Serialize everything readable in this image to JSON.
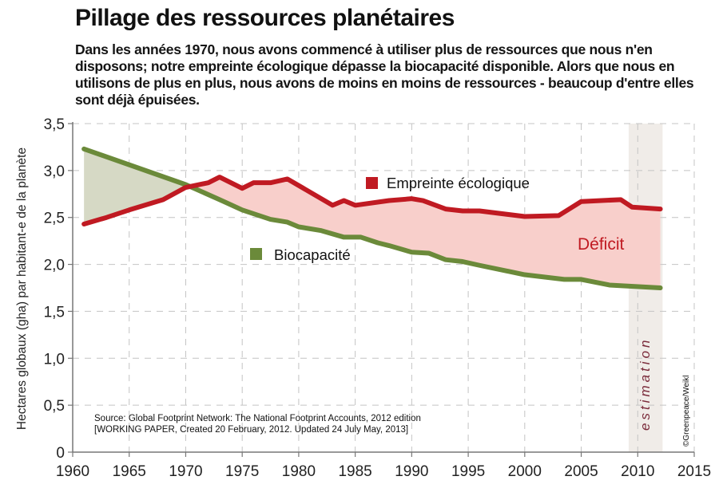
{
  "title": "Pillage des ressources planétaires",
  "subtitle": "Dans les années 1970, nous avons commencé à utiliser plus de ressources que nous n'en disposons; notre empreinte écologique dépasse la biocapacité disponible. Alors que nous en utilisons de plus en plus, nous avons de moins en moins de ressources - beaucoup d'entre elles sont déjà épuisées.",
  "colors": {
    "footprint": "#c01a22",
    "biocapacity": "#6b8a3a",
    "deficit_fill": "#f8cfcb",
    "reserve_fill": "#d6d9c5",
    "estimation_band": "#f0ece8"
  },
  "chart_data": {
    "type": "area",
    "title": "Pillage des ressources planétaires",
    "xlabel": "",
    "ylabel": "Hectares globaux (gha) par habitant-e de la planète",
    "xlim": [
      1960,
      2015
    ],
    "ylim": [
      0,
      3.5
    ],
    "x_ticks": [
      1960,
      1965,
      1970,
      1975,
      1980,
      1985,
      1990,
      1995,
      2000,
      2005,
      2010,
      2015
    ],
    "x_tick_labels": [
      "1960",
      "1965",
      "1970",
      "1975",
      "1980",
      "1985",
      "1990",
      "1995",
      "2000",
      "2005",
      "2010",
      "2015"
    ],
    "y_ticks": [
      0,
      0.5,
      1.0,
      1.5,
      2.0,
      2.5,
      3.0,
      3.5
    ],
    "y_tick_labels": [
      "0",
      "0,5",
      "1,0",
      "1,5",
      "2,0",
      "2,5",
      "3,0",
      "3,5"
    ],
    "grid": true,
    "series": [
      {
        "name": "Empreinte écologique",
        "color": "#c01a22",
        "x": [
          1961,
          1963,
          1965,
          1968,
          1970,
          1972,
          1973,
          1975,
          1976,
          1977.5,
          1979,
          1981,
          1983,
          1984,
          1985,
          1988,
          1990,
          1991,
          1993,
          1994.5,
          1996,
          2000,
          2003,
          2005,
          2008.5,
          2009.5,
          2012
        ],
        "values": [
          2.43,
          2.5,
          2.58,
          2.69,
          2.82,
          2.87,
          2.93,
          2.81,
          2.87,
          2.87,
          2.91,
          2.77,
          2.63,
          2.68,
          2.63,
          2.68,
          2.7,
          2.68,
          2.59,
          2.57,
          2.57,
          2.51,
          2.52,
          2.67,
          2.69,
          2.61,
          2.59
        ]
      },
      {
        "name": "Biocapacité",
        "color": "#6b8a3a",
        "x": [
          1961,
          1970,
          1973,
          1975,
          1977.5,
          1979,
          1980,
          1982,
          1984,
          1985.5,
          1987,
          1988,
          1990,
          1991.5,
          1993,
          1994.5,
          1996,
          2000,
          2003.5,
          2005,
          2007.5,
          2012
        ],
        "values": [
          3.23,
          2.85,
          2.69,
          2.58,
          2.48,
          2.45,
          2.4,
          2.36,
          2.29,
          2.29,
          2.23,
          2.2,
          2.13,
          2.12,
          2.05,
          2.03,
          1.99,
          1.89,
          1.84,
          1.84,
          1.78,
          1.75
        ]
      }
    ],
    "legend": [
      {
        "label": "Empreinte écologique",
        "color": "#c01a22",
        "placement": "upper-center"
      },
      {
        "label": "Biocapacité",
        "color": "#6b8a3a",
        "placement": "center"
      }
    ],
    "annotations": {
      "deficit": "Déficit",
      "estimation": "estimation",
      "estimation_range": [
        2009.2,
        2012.2
      ],
      "source_line1": "Source: Global Footprint Network: The National Footprint Accounts, 2012 edition",
      "source_line2": "[WORKING PAPER, Created 20 February, 2012. Updated 24 July May, 2013]",
      "credit": "©Greenpeace/Weikl"
    }
  }
}
